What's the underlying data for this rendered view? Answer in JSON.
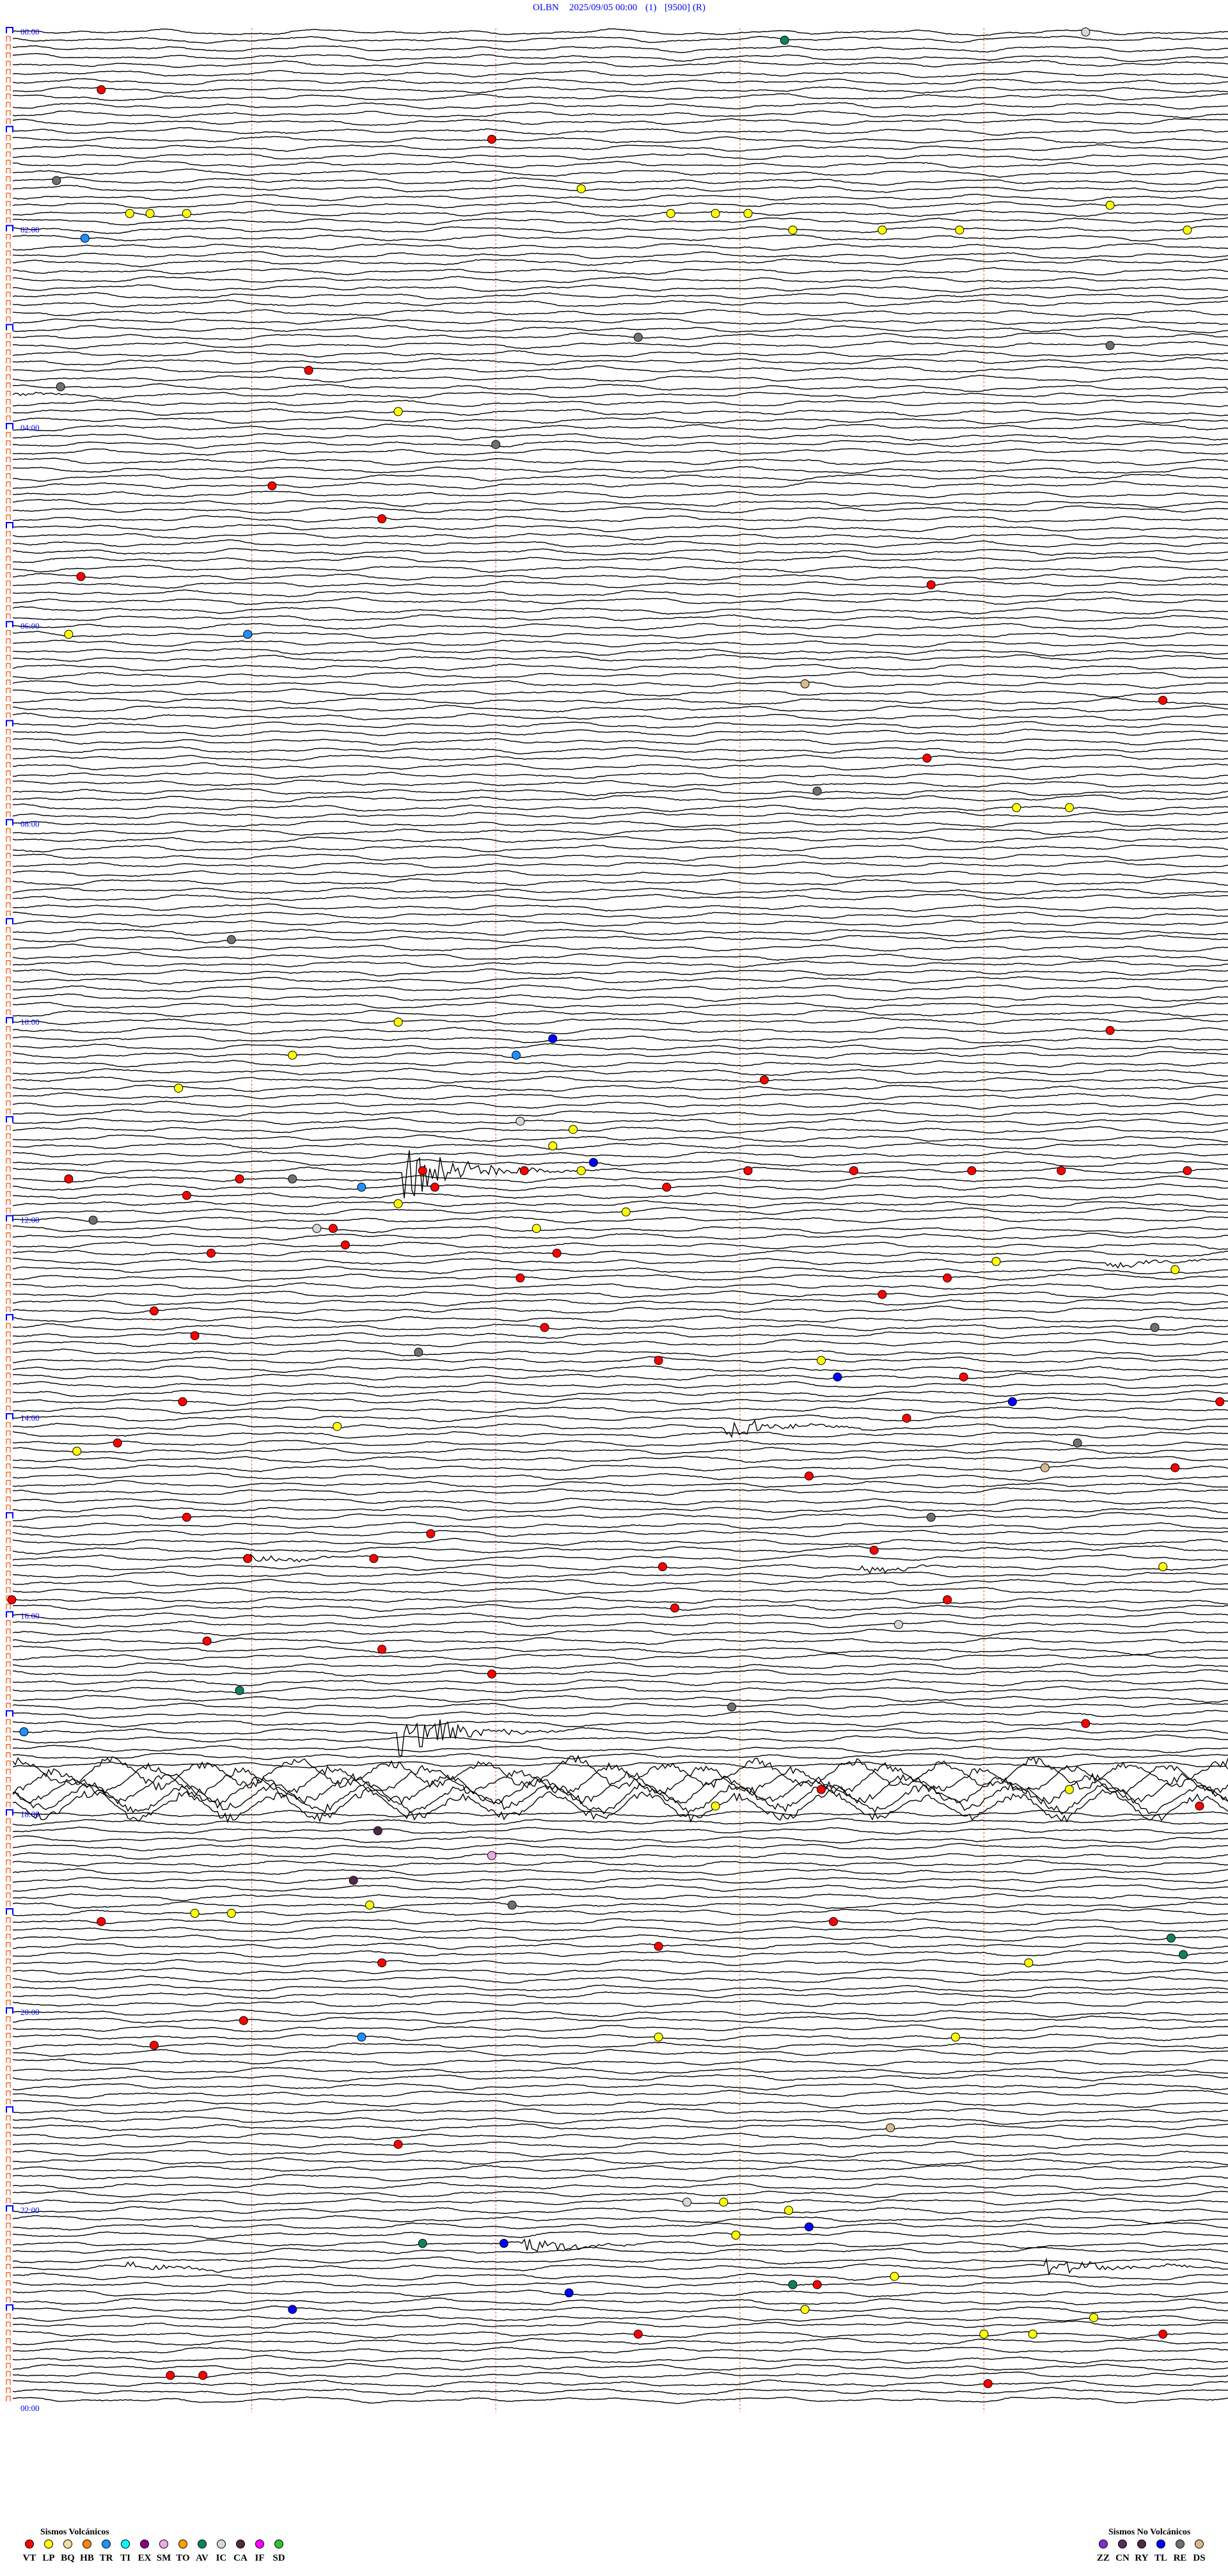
{
  "header": {
    "station": "OLBN",
    "datetime": "2025/09/05 00:00",
    "channel": "(1)",
    "gain": "[9500]",
    "mode": "(R)"
  },
  "chart_data": {
    "type": "line",
    "subtype": "helicorder",
    "row_minutes": 5,
    "rows": 288,
    "time_labels": [
      "00:00",
      "02:00",
      "04:00",
      "06:00",
      "08:00",
      "10:00",
      "12:00",
      "14:00",
      "16:00",
      "18:00",
      "20:00",
      "22:00",
      "00:00"
    ],
    "minute_gridlines": true,
    "colors": {
      "trace": "#000000",
      "hour_label": "#0000ff",
      "gridline": "#e07050",
      "row_marker": "#ff5010"
    },
    "bursts": [
      {
        "t": "03:40:00",
        "amp": 0.6
      },
      {
        "t": "11:31:37",
        "amp": 8
      },
      {
        "t": "12:29:30",
        "amp": 1.5
      },
      {
        "t": "14:07:56",
        "amp": 3
      },
      {
        "t": "15:25:58",
        "amp": 1.2
      },
      {
        "t": "15:33:30",
        "amp": 1.0
      },
      {
        "t": "17:11:36",
        "amp": 7
      },
      {
        "t": "22:22:06",
        "amp": 2.5
      },
      {
        "t": "22:35:29",
        "amp": 1.5
      },
      {
        "t": "22:39:15",
        "amp": 3
      }
    ],
    "noise_band": {
      "start": "17:35:00",
      "end": "18:00:00"
    },
    "events": [
      {
        "t": "00:04:25",
        "type": "IC"
      },
      {
        "t": "00:08:11",
        "type": "AV"
      },
      {
        "t": "00:35:23",
        "type": "VT"
      },
      {
        "t": "01:06:59",
        "type": "VT"
      },
      {
        "t": "01:30:12",
        "type": "RE"
      },
      {
        "t": "01:37:21",
        "type": "LP"
      },
      {
        "t": "01:49:31",
        "type": "LP"
      },
      {
        "t": "01:50:30",
        "type": "LP"
      },
      {
        "t": "01:50:35",
        "type": "LP"
      },
      {
        "t": "01:50:44",
        "type": "LP"
      },
      {
        "t": "01:52:43",
        "type": "LP"
      },
      {
        "t": "01:52:54",
        "type": "LP"
      },
      {
        "t": "01:53:02",
        "type": "LP"
      },
      {
        "t": "02:03:13",
        "type": "LP"
      },
      {
        "t": "02:03:35",
        "type": "LP"
      },
      {
        "t": "02:03:54",
        "type": "LP"
      },
      {
        "t": "02:04:50",
        "type": "LP"
      },
      {
        "t": "02:05:19",
        "type": "TR"
      },
      {
        "t": "03:07:35",
        "type": "RE"
      },
      {
        "t": "03:14:31",
        "type": "RE"
      },
      {
        "t": "03:26:14",
        "type": "VT"
      },
      {
        "t": "03:35:13",
        "type": "RE"
      },
      {
        "t": "03:51:36",
        "type": "LP"
      },
      {
        "t": "04:12:00",
        "type": "RE"
      },
      {
        "t": "04:36:05",
        "type": "VT"
      },
      {
        "t": "04:56:32",
        "type": "VT"
      },
      {
        "t": "05:30:18",
        "type": "VT"
      },
      {
        "t": "05:38:47",
        "type": "VT"
      },
      {
        "t": "06:05:15",
        "type": "LP"
      },
      {
        "t": "06:05:59",
        "type": "TR"
      },
      {
        "t": "06:38:16",
        "type": "DS"
      },
      {
        "t": "06:49:44",
        "type": "VT"
      },
      {
        "t": "07:23:46",
        "type": "VT"
      },
      {
        "t": "07:43:19",
        "type": "RE"
      },
      {
        "t": "07:54:08",
        "type": "LP"
      },
      {
        "t": "07:54:21",
        "type": "LP"
      },
      {
        "t": "09:10:55",
        "type": "RE"
      },
      {
        "t": "10:01:36",
        "type": "LP"
      },
      {
        "t": "10:09:31",
        "type": "VT"
      },
      {
        "t": "10:12:14",
        "type": "TL"
      },
      {
        "t": "10:21:10",
        "type": "LP"
      },
      {
        "t": "10:22:05",
        "type": "TR"
      },
      {
        "t": "10:38:06",
        "type": "VT"
      },
      {
        "t": "10:40:42",
        "type": "LP"
      },
      {
        "t": "11:02:06",
        "type": "IC"
      },
      {
        "t": "11:07:19",
        "type": "LP"
      },
      {
        "t": "11:17:14",
        "type": "LP"
      },
      {
        "t": "11:27:24",
        "type": "TL"
      },
      {
        "t": "11:31:42",
        "type": "VT"
      },
      {
        "t": "11:32:07",
        "type": "VT"
      },
      {
        "t": "11:32:21",
        "type": "LP"
      },
      {
        "t": "11:33:02",
        "type": "VT"
      },
      {
        "t": "11:33:28",
        "type": "VT"
      },
      {
        "t": "11:33:57",
        "type": "VT"
      },
      {
        "t": "11:34:19",
        "type": "VT"
      },
      {
        "t": "11:34:50",
        "type": "VT"
      },
      {
        "t": "11:35:15",
        "type": "VT"
      },
      {
        "t": "11:35:57",
        "type": "VT"
      },
      {
        "t": "11:36:10",
        "type": "RE"
      },
      {
        "t": "11:41:27",
        "type": "TR"
      },
      {
        "t": "11:41:45",
        "type": "VT"
      },
      {
        "t": "11:42:42",
        "type": "VT"
      },
      {
        "t": "11:45:44",
        "type": "VT"
      },
      {
        "t": "11:51:36",
        "type": "LP"
      },
      {
        "t": "11:57:32",
        "type": "LP"
      },
      {
        "t": "12:00:21",
        "type": "RE"
      },
      {
        "t": "12:06:16",
        "type": "IC"
      },
      {
        "t": "12:06:20",
        "type": "VT"
      },
      {
        "t": "12:07:10",
        "type": "LP"
      },
      {
        "t": "12:16:23",
        "type": "VT"
      },
      {
        "t": "12:20:50",
        "type": "VT"
      },
      {
        "t": "12:22:15",
        "type": "VT"
      },
      {
        "t": "12:29:03",
        "type": "LP"
      },
      {
        "t": "12:34:47",
        "type": "LP"
      },
      {
        "t": "12:37:06",
        "type": "VT"
      },
      {
        "t": "12:38:51",
        "type": "VT"
      },
      {
        "t": "12:48:35",
        "type": "VT"
      },
      {
        "t": "12:55:36",
        "type": "VT"
      },
      {
        "t": "13:07:12",
        "type": "VT"
      },
      {
        "t": "13:09:42",
        "type": "RE"
      },
      {
        "t": "13:10:46",
        "type": "VT"
      },
      {
        "t": "13:21:41",
        "type": "RE"
      },
      {
        "t": "13:27:40",
        "type": "VT"
      },
      {
        "t": "13:28:20",
        "type": "LP"
      },
      {
        "t": "13:38:24",
        "type": "TL"
      },
      {
        "t": "13:38:55",
        "type": "VT"
      },
      {
        "t": "13:50:43",
        "type": "VT"
      },
      {
        "t": "13:54:07",
        "type": "TL"
      },
      {
        "t": "13:54:58",
        "type": "VT"
      },
      {
        "t": "14:03:41",
        "type": "VT"
      },
      {
        "t": "14:06:21",
        "type": "LP"
      },
      {
        "t": "14:15:27",
        "type": "VT"
      },
      {
        "t": "14:19:23",
        "type": "RE"
      },
      {
        "t": "14:20:17",
        "type": "LP"
      },
      {
        "t": "14:34:15",
        "type": "DS"
      },
      {
        "t": "14:34:47",
        "type": "VT"
      },
      {
        "t": "14:38:17",
        "type": "VT"
      },
      {
        "t": "15:00:44",
        "type": "VT"
      },
      {
        "t": "15:03:47",
        "type": "RE"
      },
      {
        "t": "15:11:44",
        "type": "VT"
      },
      {
        "t": "15:23:33",
        "type": "VT"
      },
      {
        "t": "15:25:59",
        "type": "VT"
      },
      {
        "t": "15:26:30",
        "type": "VT"
      },
      {
        "t": "15:32:41",
        "type": "VT"
      },
      {
        "t": "15:34:44",
        "type": "LP"
      },
      {
        "t": "15:50:01",
        "type": "VT"
      },
      {
        "t": "15:53:51",
        "type": "VT"
      },
      {
        "t": "15:57:44",
        "type": "VT"
      },
      {
        "t": "16:08:39",
        "type": "IC"
      },
      {
        "t": "16:15:49",
        "type": "VT"
      },
      {
        "t": "16:21:32",
        "type": "VT"
      },
      {
        "t": "16:36:59",
        "type": "VT"
      },
      {
        "t": "16:45:57",
        "type": "AV"
      },
      {
        "t": "16:57:58",
        "type": "RE"
      },
      {
        "t": "17:09:25",
        "type": "VT"
      },
      {
        "t": "17:10:04",
        "type": "TR"
      },
      {
        "t": "17:48:20",
        "type": "VT"
      },
      {
        "t": "17:49:21",
        "type": "LP"
      },
      {
        "t": "17:57:54",
        "type": "LP"
      },
      {
        "t": "17:59:53",
        "type": "VT"
      },
      {
        "t": "18:11:31",
        "type": "CA"
      },
      {
        "t": "18:26:59",
        "type": "SM"
      },
      {
        "t": "18:41:25",
        "type": "CA"
      },
      {
        "t": "18:56:29",
        "type": "LP"
      },
      {
        "t": "18:57:04",
        "type": "RE"
      },
      {
        "t": "19:00:46",
        "type": "LP"
      },
      {
        "t": "19:00:55",
        "type": "LP"
      },
      {
        "t": "19:05:23",
        "type": "VT"
      },
      {
        "t": "19:08:23",
        "type": "VT"
      },
      {
        "t": "19:19:46",
        "type": "AV"
      },
      {
        "t": "19:22:40",
        "type": "VT"
      },
      {
        "t": "19:29:49",
        "type": "AV"
      },
      {
        "t": "19:31:32",
        "type": "VT"
      },
      {
        "t": "19:34:11",
        "type": "LP"
      },
      {
        "t": "20:05:58",
        "type": "VT"
      },
      {
        "t": "20:16:27",
        "type": "TR"
      },
      {
        "t": "20:17:40",
        "type": "LP"
      },
      {
        "t": "20:18:53",
        "type": "LP"
      },
      {
        "t": "20:20:36",
        "type": "VT"
      },
      {
        "t": "21:13:37",
        "type": "DS"
      },
      {
        "t": "21:21:36",
        "type": "VT"
      },
      {
        "t": "21:57:47",
        "type": "IC"
      },
      {
        "t": "21:57:56",
        "type": "LP"
      },
      {
        "t": "22:03:12",
        "type": "LP"
      },
      {
        "t": "22:13:17",
        "type": "TL"
      },
      {
        "t": "22:17:59",
        "type": "LP"
      },
      {
        "t": "22:21:42",
        "type": "AV"
      },
      {
        "t": "22:22:02",
        "type": "TL"
      },
      {
        "t": "22:43:38",
        "type": "LP"
      },
      {
        "t": "22:48:13",
        "type": "AV"
      },
      {
        "t": "22:48:19",
        "type": "VT"
      },
      {
        "t": "22:52:18",
        "type": "TL"
      },
      {
        "t": "23:01:10",
        "type": "TL"
      },
      {
        "t": "23:03:16",
        "type": "LP"
      },
      {
        "t": "23:09:27",
        "type": "LP"
      },
      {
        "t": "23:17:35",
        "type": "VT"
      },
      {
        "t": "23:19:00",
        "type": "LP"
      },
      {
        "t": "23:19:12",
        "type": "LP"
      },
      {
        "t": "23:19:44",
        "type": "VT"
      },
      {
        "t": "23:40:40",
        "type": "VT"
      },
      {
        "t": "23:40:48",
        "type": "VT"
      },
      {
        "t": "23:49:01",
        "type": "VT"
      }
    ]
  },
  "legend": {
    "volcanic_title": "Sismos Volcánicos",
    "volcanic": [
      {
        "code": "VT",
        "color": "#ff0000"
      },
      {
        "code": "LP",
        "color": "#ffff00"
      },
      {
        "code": "BQ",
        "color": "#f0e0a0"
      },
      {
        "code": "HB",
        "color": "#ff8010"
      },
      {
        "code": "TR",
        "color": "#2090ff"
      },
      {
        "code": "TI",
        "color": "#00ffff"
      },
      {
        "code": "EX",
        "color": "#8b0088"
      },
      {
        "code": "SM",
        "color": "#f0a8e8"
      },
      {
        "code": "TO",
        "color": "#ffa000"
      },
      {
        "code": "AV",
        "color": "#108060"
      },
      {
        "code": "IC",
        "color": "#d8d8d8"
      },
      {
        "code": "CA",
        "color": "#502848"
      },
      {
        "code": "IF",
        "color": "#ff00ff"
      },
      {
        "code": "SD",
        "color": "#30c030"
      }
    ],
    "non_volcanic_title": "Sismos No Volcánicos",
    "non_volcanic": [
      {
        "code": "ZZ",
        "color": "#8030d0"
      },
      {
        "code": "CN",
        "color": "#503050"
      },
      {
        "code": "RY",
        "color": "#502848"
      },
      {
        "code": "TL",
        "color": "#0000ff"
      },
      {
        "code": "RE",
        "color": "#707070"
      },
      {
        "code": "DS",
        "color": "#d8b890"
      }
    ]
  }
}
